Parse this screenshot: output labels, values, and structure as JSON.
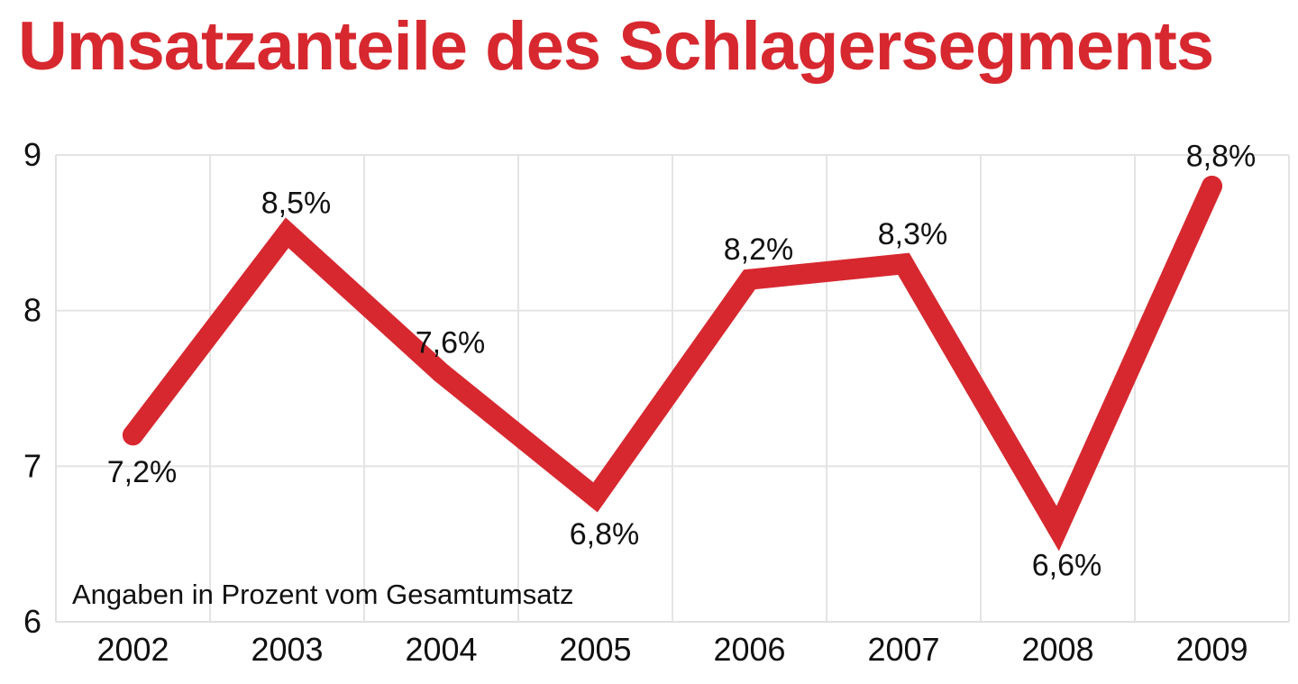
{
  "chart_data": {
    "type": "line",
    "title": "Umsatzanteile des Schlagersegments",
    "note": "Angaben in Prozent vom Gesamtumsatz",
    "categories": [
      "2002",
      "2003",
      "2004",
      "2005",
      "2006",
      "2007",
      "2008",
      "2009"
    ],
    "series": [
      {
        "values": [
          7.2,
          8.5,
          7.6,
          6.8,
          8.2,
          8.3,
          6.6,
          8.8
        ],
        "color": "#d7282f"
      }
    ],
    "data_labels": [
      "7,2%",
      "8,5%",
      "7,6%",
      "6,8%",
      "8,2%",
      "8,3%",
      "6,6%",
      "8,8%"
    ],
    "ylim": [
      6,
      9
    ],
    "yticks": [
      "6",
      "7",
      "8",
      "9"
    ],
    "grid": true,
    "legend": "none",
    "xlabel": "",
    "ylabel": ""
  }
}
